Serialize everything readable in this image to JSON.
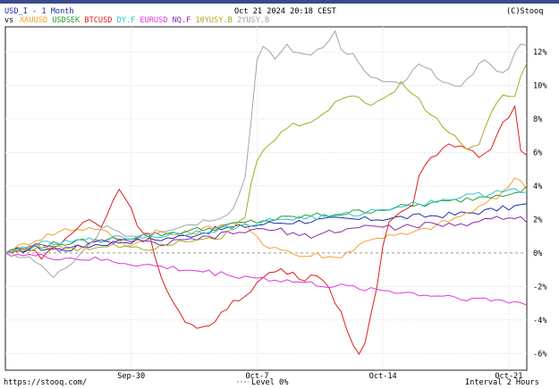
{
  "header": {
    "symbol_line": "USD_I - 1 Month",
    "datetime": "Oct 21 2024 20:18 CEST",
    "copyright": "(C)Stooq",
    "vs_label": "vs"
  },
  "footer": {
    "url": "https://stooq.com/",
    "level_label": "Level 0%",
    "interval": "Interval 2 Hours"
  },
  "chart_data": {
    "type": "line",
    "y_unit": "%",
    "ylim": [
      -7,
      13.5
    ],
    "y_ticks": [
      {
        "value": 12,
        "label": "12%"
      },
      {
        "value": 10,
        "label": "10%"
      },
      {
        "value": 8,
        "label": "8%"
      },
      {
        "value": 6,
        "label": "6%"
      },
      {
        "value": 4,
        "label": "4%"
      },
      {
        "value": 2,
        "label": "2%"
      },
      {
        "value": 0,
        "label": "0%"
      },
      {
        "value": -2,
        "label": "-2%"
      },
      {
        "value": -4,
        "label": "-4%"
      },
      {
        "value": -6,
        "label": "-6%"
      }
    ],
    "x_ticks": [
      {
        "index": 21,
        "label": "Sep-30"
      },
      {
        "index": 42,
        "label": "Oct-7"
      },
      {
        "index": 63,
        "label": "Oct-14"
      },
      {
        "index": 84,
        "label": "Oct-21"
      }
    ],
    "x_count": 88,
    "grid": true,
    "legend": "top-left",
    "series": [
      {
        "name": "USD_I",
        "color": "#1c2fa8",
        "keys": [
          [
            0,
            0
          ],
          [
            5,
            0.3
          ],
          [
            10,
            0.2
          ],
          [
            15,
            0.5
          ],
          [
            20,
            0.7
          ],
          [
            25,
            0.8
          ],
          [
            30,
            1.0
          ],
          [
            35,
            1.4
          ],
          [
            40,
            1.6
          ],
          [
            45,
            1.8
          ],
          [
            50,
            1.9
          ],
          [
            55,
            2.0
          ],
          [
            60,
            2.0
          ],
          [
            65,
            2.1
          ],
          [
            70,
            2.2
          ],
          [
            75,
            2.3
          ],
          [
            80,
            2.5
          ],
          [
            84,
            2.7
          ],
          [
            87,
            2.9
          ]
        ]
      },
      {
        "name": "XAUUSD",
        "color": "#f5a030",
        "keys": [
          [
            0,
            0
          ],
          [
            5,
            0.8
          ],
          [
            10,
            1.4
          ],
          [
            15,
            1.5
          ],
          [
            18,
            1.0
          ],
          [
            20,
            0.5
          ],
          [
            23,
            0.7
          ],
          [
            25,
            1.3
          ],
          [
            28,
            1.1
          ],
          [
            31,
            1.2
          ],
          [
            34,
            1.5
          ],
          [
            37,
            1.8
          ],
          [
            40,
            1.6
          ],
          [
            43,
            0.5
          ],
          [
            46,
            0.3
          ],
          [
            49,
            -0.2
          ],
          [
            52,
            -0.1
          ],
          [
            55,
            -0.3
          ],
          [
            58,
            0.2
          ],
          [
            61,
            0.9
          ],
          [
            64,
            1.0
          ],
          [
            67,
            1.1
          ],
          [
            70,
            1.4
          ],
          [
            73,
            1.8
          ],
          [
            76,
            2.2
          ],
          [
            79,
            2.7
          ],
          [
            82,
            3.3
          ],
          [
            85,
            4.5
          ],
          [
            87,
            3.9
          ]
        ]
      },
      {
        "name": "USDSEK",
        "color": "#2a9a36",
        "keys": [
          [
            0,
            0
          ],
          [
            5,
            0.4
          ],
          [
            10,
            0.6
          ],
          [
            15,
            0.7
          ],
          [
            20,
            0.9
          ],
          [
            25,
            1.1
          ],
          [
            30,
            1.3
          ],
          [
            35,
            1.5
          ],
          [
            40,
            1.8
          ],
          [
            45,
            2.0
          ],
          [
            50,
            2.2
          ],
          [
            55,
            2.3
          ],
          [
            60,
            2.5
          ],
          [
            65,
            2.7
          ],
          [
            70,
            2.9
          ],
          [
            75,
            3.1
          ],
          [
            80,
            3.4
          ],
          [
            84,
            3.6
          ],
          [
            87,
            3.9
          ]
        ]
      },
      {
        "name": "BTCUSD",
        "color": "#e01c1c",
        "keys": [
          [
            0,
            0
          ],
          [
            3,
            0.4
          ],
          [
            6,
            -0.2
          ],
          [
            9,
            0.5
          ],
          [
            12,
            1.5
          ],
          [
            14,
            2.0
          ],
          [
            16,
            1.5
          ],
          [
            18,
            3.2
          ],
          [
            19,
            3.8
          ],
          [
            21,
            2.8
          ],
          [
            22,
            1.5
          ],
          [
            24,
            1.2
          ],
          [
            26,
            -1.5
          ],
          [
            28,
            -3.0
          ],
          [
            30,
            -4.2
          ],
          [
            32,
            -4.6
          ],
          [
            34,
            -4.3
          ],
          [
            36,
            -3.6
          ],
          [
            38,
            -3.0
          ],
          [
            40,
            -2.5
          ],
          [
            42,
            -1.8
          ],
          [
            44,
            -1.2
          ],
          [
            46,
            -1.0
          ],
          [
            48,
            -1.3
          ],
          [
            50,
            -1.5
          ],
          [
            52,
            -1.2
          ],
          [
            54,
            -2.2
          ],
          [
            56,
            -3.5
          ],
          [
            58,
            -5.5
          ],
          [
            59,
            -6.2
          ],
          [
            60,
            -5.5
          ],
          [
            61,
            -3.8
          ],
          [
            62,
            -2.0
          ],
          [
            63,
            0.5
          ],
          [
            64,
            1.8
          ],
          [
            66,
            2.6
          ],
          [
            68,
            3.0
          ],
          [
            69,
            4.6
          ],
          [
            70,
            5.2
          ],
          [
            71,
            5.8
          ],
          [
            73,
            6.2
          ],
          [
            75,
            6.5
          ],
          [
            77,
            6.1
          ],
          [
            79,
            5.8
          ],
          [
            81,
            6.3
          ],
          [
            83,
            7.8
          ],
          [
            85,
            8.6
          ],
          [
            86,
            6.2
          ],
          [
            87,
            5.9
          ]
        ]
      },
      {
        "name": "DY.F",
        "color": "#2bc4d4",
        "keys": [
          [
            0,
            0
          ],
          [
            5,
            0.5
          ],
          [
            10,
            0.6
          ],
          [
            15,
            0.8
          ],
          [
            20,
            0.9
          ],
          [
            25,
            1.0
          ],
          [
            30,
            1.2
          ],
          [
            35,
            1.4
          ],
          [
            40,
            1.6
          ],
          [
            45,
            2.0
          ],
          [
            50,
            2.1
          ],
          [
            55,
            2.2
          ],
          [
            60,
            2.4
          ],
          [
            65,
            2.8
          ],
          [
            70,
            3.0
          ],
          [
            75,
            3.3
          ],
          [
            80,
            3.5
          ],
          [
            84,
            3.9
          ],
          [
            87,
            3.5
          ]
        ]
      },
      {
        "name": "EURUSD",
        "color": "#e038d8",
        "keys": [
          [
            0,
            0
          ],
          [
            5,
            -0.2
          ],
          [
            10,
            -0.3
          ],
          [
            15,
            -0.4
          ],
          [
            20,
            -0.6
          ],
          [
            25,
            -0.8
          ],
          [
            30,
            -1.0
          ],
          [
            35,
            -1.2
          ],
          [
            40,
            -1.4
          ],
          [
            45,
            -1.6
          ],
          [
            50,
            -1.8
          ],
          [
            55,
            -2.0
          ],
          [
            60,
            -2.1
          ],
          [
            65,
            -2.3
          ],
          [
            70,
            -2.5
          ],
          [
            75,
            -2.6
          ],
          [
            80,
            -2.8
          ],
          [
            85,
            -2.9
          ],
          [
            87,
            -3.1
          ]
        ]
      },
      {
        "name": "NQ.F",
        "color": "#8a2ba8",
        "keys": [
          [
            0,
            0
          ],
          [
            5,
            0.4
          ],
          [
            10,
            0.2
          ],
          [
            15,
            0.6
          ],
          [
            20,
            0.8
          ],
          [
            25,
            0.5
          ],
          [
            30,
            0.7
          ],
          [
            35,
            1.0
          ],
          [
            40,
            1.3
          ],
          [
            45,
            1.4
          ],
          [
            50,
            1.0
          ],
          [
            55,
            1.3
          ],
          [
            60,
            1.6
          ],
          [
            65,
            1.5
          ],
          [
            70,
            1.7
          ],
          [
            75,
            1.6
          ],
          [
            80,
            2.0
          ],
          [
            84,
            2.2
          ],
          [
            87,
            2.0
          ]
        ]
      },
      {
        "name": "10YUSY.B",
        "color": "#a8a820",
        "keys": [
          [
            0,
            0
          ],
          [
            6,
            0.4
          ],
          [
            12,
            0.2
          ],
          [
            18,
            0.5
          ],
          [
            24,
            0.3
          ],
          [
            30,
            0.8
          ],
          [
            36,
            1.0
          ],
          [
            40,
            2.0
          ],
          [
            41,
            4.0
          ],
          [
            42,
            5.6
          ],
          [
            44,
            6.4
          ],
          [
            47,
            7.5
          ],
          [
            50,
            7.8
          ],
          [
            53,
            8.2
          ],
          [
            56,
            9.2
          ],
          [
            58,
            9.5
          ],
          [
            61,
            8.8
          ],
          [
            63,
            9.2
          ],
          [
            65,
            9.8
          ],
          [
            66,
            10.2
          ],
          [
            68,
            9.6
          ],
          [
            70,
            8.6
          ],
          [
            73,
            7.6
          ],
          [
            75,
            6.9
          ],
          [
            77,
            6.3
          ],
          [
            79,
            6.6
          ],
          [
            81,
            8.3
          ],
          [
            83,
            9.4
          ],
          [
            85,
            9.5
          ],
          [
            87,
            11.3
          ]
        ]
      },
      {
        "name": "2YUSY.B",
        "color": "#a4a4a4",
        "keys": [
          [
            0,
            0
          ],
          [
            4,
            -0.3
          ],
          [
            8,
            -1.4
          ],
          [
            11,
            -0.8
          ],
          [
            14,
            0.5
          ],
          [
            17,
            1.8
          ],
          [
            20,
            1.0
          ],
          [
            24,
            1.2
          ],
          [
            28,
            1.5
          ],
          [
            32,
            1.8
          ],
          [
            36,
            2.2
          ],
          [
            38,
            2.6
          ],
          [
            40,
            4.5
          ],
          [
            41,
            8.0
          ],
          [
            42,
            11.5
          ],
          [
            43,
            12.2
          ],
          [
            45,
            11.6
          ],
          [
            47,
            12.4
          ],
          [
            49,
            11.8
          ],
          [
            51,
            11.9
          ],
          [
            53,
            12.4
          ],
          [
            55,
            13.2
          ],
          [
            56,
            12.1
          ],
          [
            58,
            11.8
          ],
          [
            60,
            10.7
          ],
          [
            63,
            10.2
          ],
          [
            66,
            10.0
          ],
          [
            69,
            11.2
          ],
          [
            72,
            10.6
          ],
          [
            75,
            9.8
          ],
          [
            78,
            10.8
          ],
          [
            80,
            11.6
          ],
          [
            82,
            10.7
          ],
          [
            84,
            11.1
          ],
          [
            86,
            12.6
          ],
          [
            87,
            12.5
          ]
        ]
      }
    ]
  }
}
